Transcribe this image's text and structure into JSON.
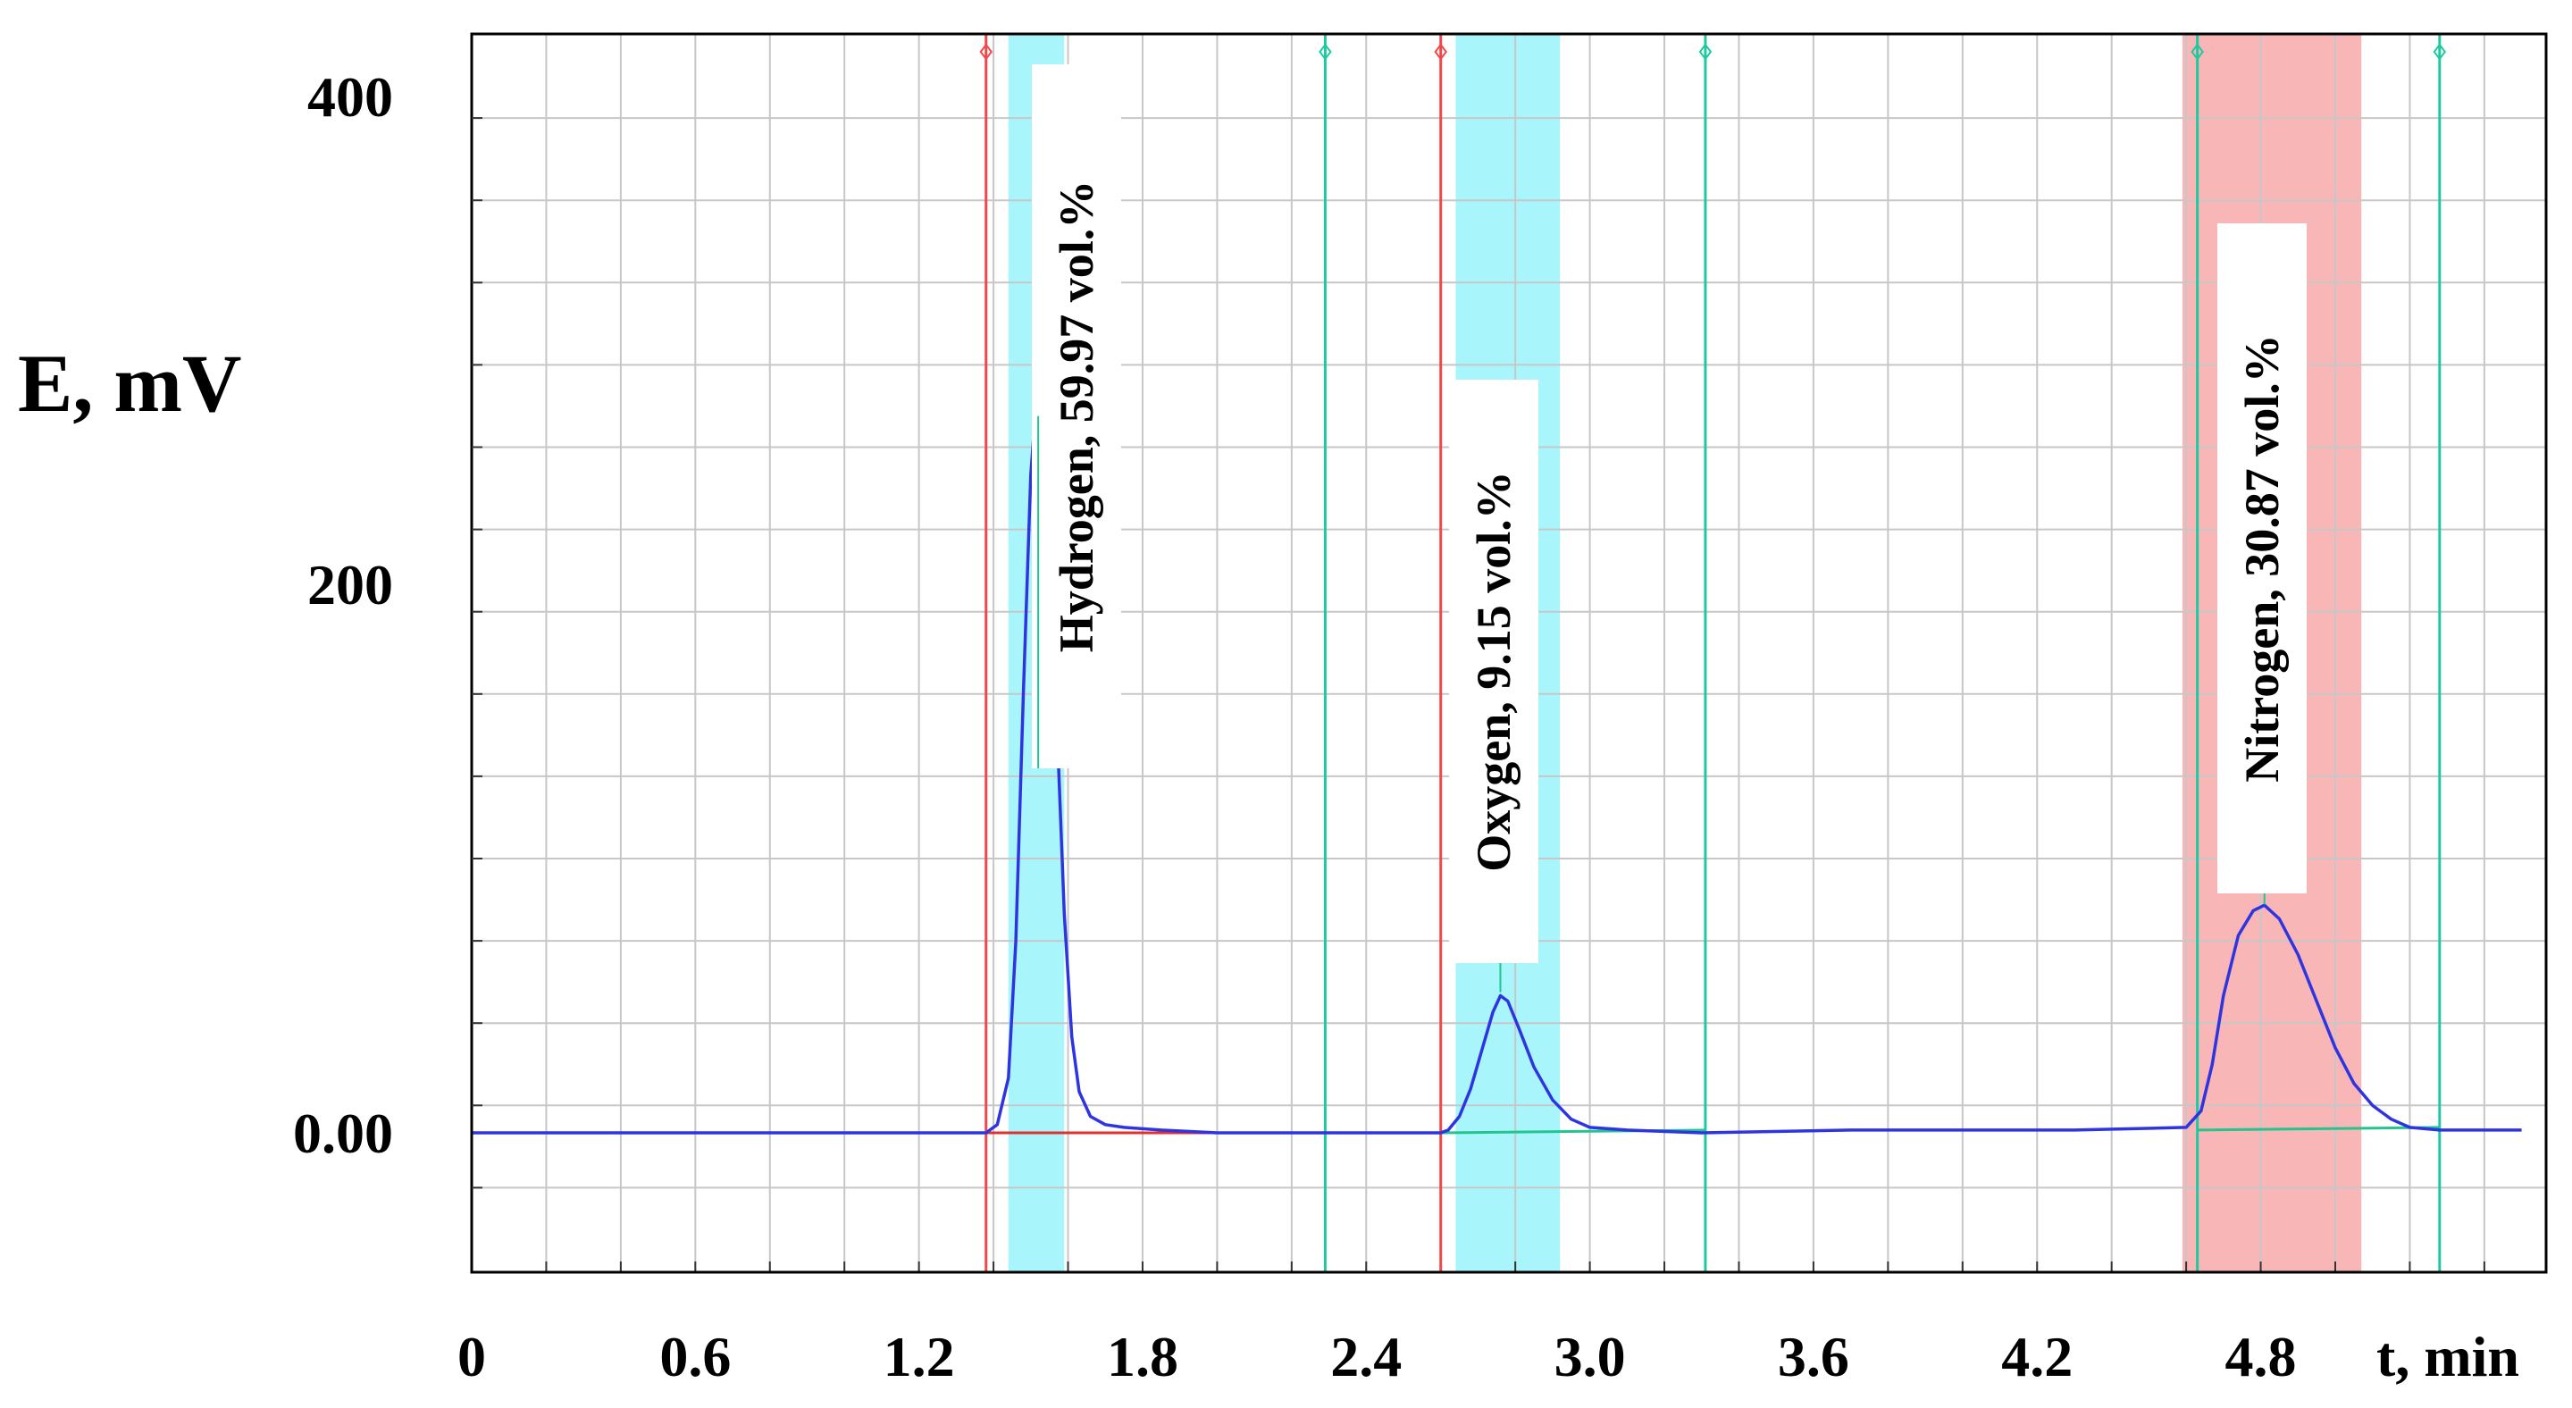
{
  "chart_data": {
    "type": "line",
    "ylabel": "E, mV",
    "xlabel": "t, min",
    "x_ticks": [
      "0",
      "0.6",
      "1.2",
      "1.8",
      "2.4",
      "3.0",
      "3.6",
      "4.2",
      "4.8"
    ],
    "y_ticks": [
      "0.00",
      "200",
      "400"
    ],
    "xlim": [
      0,
      5.5
    ],
    "ylim": [
      -50,
      410
    ],
    "grid": true,
    "colors": {
      "signal": "#2e35e0",
      "baseline": "#e03030",
      "baseline2": "#22c58e",
      "marker_red": "#f04848",
      "marker_green": "#1fc9a0",
      "band_cyan": "#a8f6fb",
      "band_pink": "#f9b6b6"
    },
    "peaks": [
      {
        "label": "Hydrogen, 59.97 vol.%",
        "apex_t": 1.52,
        "apex_e": 260,
        "band": [
          1.44,
          1.59
        ],
        "band_color": "cyan"
      },
      {
        "label": "Oxygen, 9.15 vol.%",
        "apex_t": 2.76,
        "apex_e": 50,
        "band": [
          2.64,
          2.92
        ],
        "band_color": "cyan"
      },
      {
        "label": "Nitrogen, 30.87 vol.%",
        "apex_t": 4.81,
        "apex_e": 82,
        "band": [
          4.59,
          5.07
        ],
        "band_color": "pink"
      }
    ],
    "markers": [
      {
        "t": 1.38,
        "color": "red"
      },
      {
        "t": 2.29,
        "color": "green"
      },
      {
        "t": 2.6,
        "color": "red"
      },
      {
        "t": 3.31,
        "color": "green"
      },
      {
        "t": 4.63,
        "color": "green"
      },
      {
        "t": 5.28,
        "color": "green"
      }
    ],
    "series": [
      {
        "x": [
          0,
          0.5,
          1.0,
          1.38,
          1.41,
          1.44,
          1.46,
          1.48,
          1.5,
          1.51,
          1.52,
          1.53,
          1.55,
          1.57,
          1.59,
          1.61,
          1.63,
          1.66,
          1.7,
          1.75,
          1.85,
          2.0,
          2.3,
          2.6,
          2.62,
          2.65,
          2.68,
          2.71,
          2.74,
          2.76,
          2.78,
          2.81,
          2.85,
          2.9,
          2.95,
          3.0,
          3.1,
          3.3,
          3.7,
          4.0,
          4.3,
          4.6,
          4.64,
          4.67,
          4.7,
          4.74,
          4.78,
          4.81,
          4.85,
          4.9,
          4.95,
          5.0,
          5.05,
          5.1,
          5.15,
          5.2,
          5.28,
          5.5
        ],
        "values": [
          0,
          0,
          0,
          0,
          3,
          20,
          70,
          160,
          240,
          258,
          262,
          250,
          215,
          150,
          80,
          35,
          15,
          6,
          3,
          2,
          1,
          0,
          0,
          0,
          1,
          6,
          16,
          30,
          44,
          50,
          48,
          38,
          24,
          12,
          5,
          2,
          1,
          0,
          1,
          1,
          1,
          2,
          8,
          25,
          50,
          72,
          81,
          83,
          78,
          65,
          48,
          31,
          18,
          10,
          5,
          2,
          1,
          1
        ]
      }
    ]
  }
}
